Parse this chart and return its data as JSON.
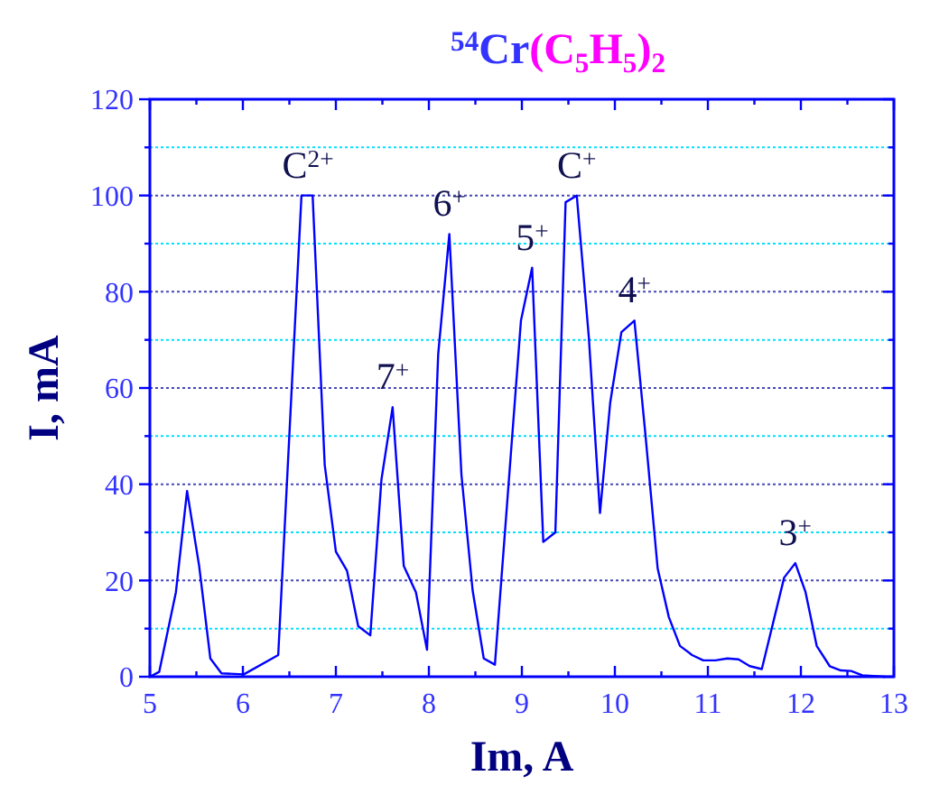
{
  "chart_data": {
    "type": "line",
    "title": "$^{54}$Cr(C$_{5}$H$_{5}$)$_{2}$",
    "xlabel": "Im, A",
    "ylabel": "I, mA",
    "x": [
      5.0,
      5.1,
      5.28,
      5.4,
      5.53,
      5.65,
      5.77,
      6.01,
      6.38,
      6.63,
      6.75,
      6.88,
      7.0,
      7.12,
      7.24,
      7.37,
      7.49,
      7.61,
      7.73,
      7.86,
      7.98,
      8.1,
      8.22,
      8.35,
      8.47,
      8.59,
      8.71,
      8.99,
      9.11,
      9.23,
      9.36,
      9.47,
      9.59,
      9.72,
      9.84,
      9.95,
      10.07,
      10.21,
      10.33,
      10.46,
      10.58,
      10.7,
      10.83,
      10.95,
      11.08,
      11.21,
      11.33,
      11.45,
      11.58,
      11.82,
      11.94,
      12.05,
      12.17,
      12.31,
      12.43,
      12.54,
      12.66,
      12.9
    ],
    "series": [
      {
        "color": "#0000ff",
        "values": [
          0,
          1,
          17.6,
          38.6,
          23,
          3.8,
          0.7,
          0.5,
          4.5,
          100,
          100,
          44,
          26,
          22,
          10.5,
          8.6,
          41,
          56,
          23,
          17.6,
          5.6,
          67,
          92,
          42,
          18,
          3.8,
          2.5,
          74,
          85,
          28,
          30,
          98.6,
          100,
          70.5,
          34,
          57,
          71.6,
          74,
          50,
          22.5,
          12.4,
          6.4,
          4.5,
          3.4,
          3.4,
          3.8,
          3.6,
          2.2,
          1.6,
          20.6,
          23.6,
          17.6,
          6.4,
          2.2,
          1.3,
          1.2,
          0.3,
          0
        ]
      }
    ],
    "xlim": [
      5,
      13
    ],
    "xticks": [
      5,
      {
        "value": 5.5,
        "label": null
      },
      6,
      {
        "value": 6.5,
        "label": null
      },
      7,
      {
        "value": 7.5,
        "label": null
      },
      8,
      {
        "value": 8.5,
        "label": null
      },
      9,
      {
        "value": 9.5,
        "label": null
      },
      10,
      {
        "value": 10.5,
        "label": null
      },
      11,
      {
        "value": 11.5,
        "label": null
      },
      12,
      {
        "value": 12.5,
        "label": null
      },
      13
    ],
    "ylim": [
      0,
      120
    ],
    "yticks": [
      0,
      {
        "value": 10,
        "label": null
      },
      20,
      {
        "value": 30,
        "label": null
      },
      40,
      {
        "value": 50,
        "label": null
      },
      60,
      {
        "value": 70,
        "label": null
      },
      80,
      {
        "value": 90,
        "label": null
      },
      100,
      {
        "value": 110,
        "label": null
      },
      120
    ],
    "grid": "y",
    "marker": "none",
    "line_style": "solid",
    "annotations": [
      {
        "text": "C$^{2+}$",
        "x": 6.7,
        "y": 100
      },
      {
        "text": "7$^{+}$",
        "x": 7.61,
        "y": 56
      },
      {
        "text": "6$^{+}$",
        "x": 8.22,
        "y": 92
      },
      {
        "text": "5$^{+}$",
        "x": 9.11,
        "y": 85
      },
      {
        "text": "C$^{+}$",
        "x": 9.59,
        "y": 100
      },
      {
        "text": "4$^{+}$",
        "x": 10.21,
        "y": 74
      },
      {
        "text": "3$^{+}$",
        "x": 11.94,
        "y": 23.6
      }
    ]
  }
}
